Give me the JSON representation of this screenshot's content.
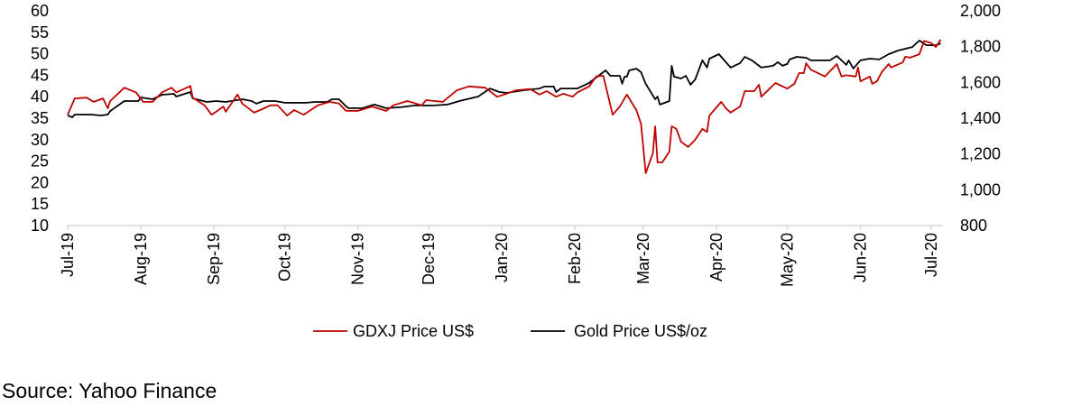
{
  "chart_data": {
    "type": "line",
    "title": "",
    "xlabel": "",
    "ylabel": "",
    "y_left": {
      "range": [
        10,
        60
      ],
      "ticks": [
        10,
        15,
        20,
        25,
        30,
        35,
        40,
        45,
        50,
        55,
        60
      ]
    },
    "y_right": {
      "range": [
        800,
        2000
      ],
      "ticks": [
        "800",
        "1,000",
        "1,200",
        "1,400",
        "1,600",
        "1,800",
        "2,000"
      ]
    },
    "x_ticks": [
      {
        "date": "2019-07-01",
        "label": "Jul-19"
      },
      {
        "date": "2019-08-01",
        "label": "Aug-19"
      },
      {
        "date": "2019-09-01",
        "label": "Sep-19"
      },
      {
        "date": "2019-10-01",
        "label": "Oct-19"
      },
      {
        "date": "2019-11-01",
        "label": "Nov-19"
      },
      {
        "date": "2019-12-01",
        "label": "Dec-19"
      },
      {
        "date": "2020-01-01",
        "label": "Jan-20"
      },
      {
        "date": "2020-02-01",
        "label": "Feb-20"
      },
      {
        "date": "2020-03-01",
        "label": "Mar-20"
      },
      {
        "date": "2020-04-01",
        "label": "Apr-20"
      },
      {
        "date": "2020-05-01",
        "label": "May-20"
      },
      {
        "date": "2020-06-01",
        "label": "Jun-20"
      },
      {
        "date": "2020-07-01",
        "label": "Jul-20"
      }
    ],
    "grid": false,
    "legend_placement": "bottom",
    "series": [
      {
        "name": "GDXJ Price US$",
        "axis": "left",
        "color": "#c00000",
        "points": [
          [
            "2019-07-01",
            35.8
          ],
          [
            "2019-07-04",
            39.6
          ],
          [
            "2019-07-09",
            39.8
          ],
          [
            "2019-07-12",
            38.8
          ],
          [
            "2019-07-16",
            39.6
          ],
          [
            "2019-07-18",
            37.3
          ],
          [
            "2019-07-19",
            39
          ],
          [
            "2019-07-25",
            42.1
          ],
          [
            "2019-07-30",
            41
          ],
          [
            "2019-08-02",
            38.8
          ],
          [
            "2019-08-06",
            38.8
          ],
          [
            "2019-08-10",
            41
          ],
          [
            "2019-08-14",
            42.1
          ],
          [
            "2019-08-16",
            41
          ],
          [
            "2019-08-22",
            42.5
          ],
          [
            "2019-08-23",
            39.8
          ],
          [
            "2019-08-28",
            38
          ],
          [
            "2019-08-31",
            35.8
          ],
          [
            "2019-09-05",
            37.7
          ],
          [
            "2019-09-06",
            36.5
          ],
          [
            "2019-09-11",
            40.5
          ],
          [
            "2019-09-13",
            38.4
          ],
          [
            "2019-09-18",
            36.3
          ],
          [
            "2019-09-21",
            37
          ],
          [
            "2019-09-25",
            38
          ],
          [
            "2019-09-28",
            38
          ],
          [
            "2019-10-02",
            35.6
          ],
          [
            "2019-10-05",
            36.9
          ],
          [
            "2019-10-09",
            35.8
          ],
          [
            "2019-10-15",
            38
          ],
          [
            "2019-10-20",
            38.8
          ],
          [
            "2019-10-24",
            38.4
          ],
          [
            "2019-10-27",
            36.7
          ],
          [
            "2019-11-01",
            36.7
          ],
          [
            "2019-11-07",
            37.7
          ],
          [
            "2019-11-13",
            36.7
          ],
          [
            "2019-11-16",
            38
          ],
          [
            "2019-11-22",
            39
          ],
          [
            "2019-11-28",
            38
          ],
          [
            "2019-11-30",
            39.2
          ],
          [
            "2019-12-07",
            38.8
          ],
          [
            "2019-12-13",
            41.5
          ],
          [
            "2019-12-18",
            42.4
          ],
          [
            "2019-12-25",
            42.1
          ],
          [
            "2019-12-30",
            40
          ],
          [
            "2020-01-02",
            40.5
          ],
          [
            "2020-01-07",
            41.5
          ],
          [
            "2020-01-13",
            41.8
          ],
          [
            "2020-01-17",
            40.5
          ],
          [
            "2020-01-20",
            41.3
          ],
          [
            "2020-01-24",
            40
          ],
          [
            "2020-01-27",
            40.7
          ],
          [
            "2020-01-31",
            40
          ],
          [
            "2020-02-02",
            41
          ],
          [
            "2020-02-07",
            42.4
          ],
          [
            "2020-02-10",
            44.7
          ],
          [
            "2020-02-13",
            44.9
          ],
          [
            "2020-02-14",
            42.6
          ],
          [
            "2020-02-17",
            35.8
          ],
          [
            "2020-02-20",
            37.7
          ],
          [
            "2020-02-23",
            40.5
          ],
          [
            "2020-02-27",
            36.9
          ],
          [
            "2020-02-29",
            33.7
          ],
          [
            "2020-03-02",
            22.2
          ],
          [
            "2020-03-05",
            26.8
          ],
          [
            "2020-03-06",
            33.1
          ],
          [
            "2020-03-07",
            24.7
          ],
          [
            "2020-03-09",
            24.7
          ],
          [
            "2020-03-12",
            27.2
          ],
          [
            "2020-03-13",
            33.1
          ],
          [
            "2020-03-15",
            32.5
          ],
          [
            "2020-03-17",
            29.5
          ],
          [
            "2020-03-20",
            28.3
          ],
          [
            "2020-03-23",
            30
          ],
          [
            "2020-03-26",
            32.5
          ],
          [
            "2020-03-28",
            31.8
          ],
          [
            "2020-03-29",
            35.6
          ],
          [
            "2020-04-03",
            38.8
          ],
          [
            "2020-04-05",
            37.3
          ],
          [
            "2020-04-07",
            36.3
          ],
          [
            "2020-04-11",
            37.7
          ],
          [
            "2020-04-13",
            41.3
          ],
          [
            "2020-04-17",
            41.3
          ],
          [
            "2020-04-19",
            42.8
          ],
          [
            "2020-04-20",
            40
          ],
          [
            "2020-04-26",
            43.2
          ],
          [
            "2020-05-01",
            41.9
          ],
          [
            "2020-05-04",
            43
          ],
          [
            "2020-05-06",
            45.5
          ],
          [
            "2020-05-08",
            45.5
          ],
          [
            "2020-05-09",
            47.8
          ],
          [
            "2020-05-11",
            46.3
          ],
          [
            "2020-05-17",
            44.7
          ],
          [
            "2020-05-22",
            47.6
          ],
          [
            "2020-05-24",
            44.7
          ],
          [
            "2020-05-26",
            45
          ],
          [
            "2020-05-30",
            44.7
          ],
          [
            "2020-05-31",
            46.8
          ],
          [
            "2020-06-01",
            43.6
          ],
          [
            "2020-06-05",
            44.7
          ],
          [
            "2020-06-06",
            43
          ],
          [
            "2020-06-08",
            43.6
          ],
          [
            "2020-06-10",
            45.7
          ],
          [
            "2020-06-13",
            47.6
          ],
          [
            "2020-06-14",
            46.8
          ],
          [
            "2020-06-19",
            48
          ],
          [
            "2020-06-20",
            49.3
          ],
          [
            "2020-06-22",
            49.1
          ],
          [
            "2020-06-26",
            49.9
          ],
          [
            "2020-06-28",
            53
          ],
          [
            "2020-07-01",
            52.5
          ],
          [
            "2020-07-03",
            51.6
          ],
          [
            "2020-07-05",
            53.3
          ]
        ]
      },
      {
        "name": "Gold Price US$/oz",
        "axis": "right",
        "color": "#000000",
        "points": [
          [
            "2019-07-01",
            1415
          ],
          [
            "2019-07-03",
            1405
          ],
          [
            "2019-07-04",
            1420
          ],
          [
            "2019-07-11",
            1420
          ],
          [
            "2019-07-15",
            1415
          ],
          [
            "2019-07-18",
            1420
          ],
          [
            "2019-07-19",
            1440
          ],
          [
            "2019-07-25",
            1496
          ],
          [
            "2019-07-31",
            1496
          ],
          [
            "2019-08-01",
            1516
          ],
          [
            "2019-08-06",
            1506
          ],
          [
            "2019-08-10",
            1531
          ],
          [
            "2019-08-15",
            1536
          ],
          [
            "2019-08-16",
            1521
          ],
          [
            "2019-08-22",
            1546
          ],
          [
            "2019-08-23",
            1511
          ],
          [
            "2019-08-29",
            1491
          ],
          [
            "2019-09-02",
            1496
          ],
          [
            "2019-09-06",
            1491
          ],
          [
            "2019-09-13",
            1506
          ],
          [
            "2019-09-17",
            1496
          ],
          [
            "2019-09-19",
            1481
          ],
          [
            "2019-09-22",
            1496
          ],
          [
            "2019-09-27",
            1496
          ],
          [
            "2019-10-01",
            1486
          ],
          [
            "2019-10-10",
            1486
          ],
          [
            "2019-10-14",
            1491
          ],
          [
            "2019-10-19",
            1491
          ],
          [
            "2019-10-21",
            1506
          ],
          [
            "2019-10-24",
            1506
          ],
          [
            "2019-10-27",
            1466
          ],
          [
            "2019-10-28",
            1456
          ],
          [
            "2019-11-03",
            1456
          ],
          [
            "2019-11-08",
            1476
          ],
          [
            "2019-11-13",
            1456
          ],
          [
            "2019-11-19",
            1461
          ],
          [
            "2019-11-25",
            1471
          ],
          [
            "2019-12-03",
            1471
          ],
          [
            "2019-12-09",
            1476
          ],
          [
            "2019-12-14",
            1496
          ],
          [
            "2019-12-22",
            1521
          ],
          [
            "2019-12-27",
            1566
          ],
          [
            "2019-12-31",
            1546
          ],
          [
            "2020-01-03",
            1541
          ],
          [
            "2020-01-10",
            1556
          ],
          [
            "2020-01-17",
            1566
          ],
          [
            "2020-01-19",
            1577
          ],
          [
            "2020-01-23",
            1577
          ],
          [
            "2020-01-24",
            1546
          ],
          [
            "2020-01-26",
            1566
          ],
          [
            "2020-02-02",
            1566
          ],
          [
            "2020-02-07",
            1597
          ],
          [
            "2020-02-12",
            1647
          ],
          [
            "2020-02-14",
            1667
          ],
          [
            "2020-02-16",
            1637
          ],
          [
            "2020-02-20",
            1637
          ],
          [
            "2020-02-21",
            1592
          ],
          [
            "2020-02-22",
            1632
          ],
          [
            "2020-02-23",
            1632
          ],
          [
            "2020-02-24",
            1667
          ],
          [
            "2020-02-27",
            1677
          ],
          [
            "2020-02-29",
            1657
          ],
          [
            "2020-03-02",
            1592
          ],
          [
            "2020-03-06",
            1506
          ],
          [
            "2020-03-07",
            1521
          ],
          [
            "2020-03-08",
            1476
          ],
          [
            "2020-03-12",
            1496
          ],
          [
            "2020-03-13",
            1693
          ],
          [
            "2020-03-14",
            1632
          ],
          [
            "2020-03-17",
            1622
          ],
          [
            "2020-03-19",
            1637
          ],
          [
            "2020-03-21",
            1587
          ],
          [
            "2020-03-23",
            1617
          ],
          [
            "2020-03-26",
            1723
          ],
          [
            "2020-03-28",
            1683
          ],
          [
            "2020-03-29",
            1733
          ],
          [
            "2020-04-02",
            1758
          ],
          [
            "2020-04-03",
            1743
          ],
          [
            "2020-04-07",
            1683
          ],
          [
            "2020-04-11",
            1708
          ],
          [
            "2020-04-13",
            1743
          ],
          [
            "2020-04-16",
            1723
          ],
          [
            "2020-04-20",
            1683
          ],
          [
            "2020-04-25",
            1693
          ],
          [
            "2020-04-27",
            1713
          ],
          [
            "2020-04-29",
            1693
          ],
          [
            "2020-05-01",
            1703
          ],
          [
            "2020-05-02",
            1728
          ],
          [
            "2020-05-05",
            1743
          ],
          [
            "2020-05-09",
            1738
          ],
          [
            "2020-05-11",
            1723
          ],
          [
            "2020-05-19",
            1723
          ],
          [
            "2020-05-22",
            1748
          ],
          [
            "2020-05-26",
            1698
          ],
          [
            "2020-05-27",
            1723
          ],
          [
            "2020-05-29",
            1678
          ],
          [
            "2020-06-01",
            1723
          ],
          [
            "2020-06-05",
            1733
          ],
          [
            "2020-06-09",
            1728
          ],
          [
            "2020-06-13",
            1758
          ],
          [
            "2020-06-17",
            1778
          ],
          [
            "2020-06-23",
            1798
          ],
          [
            "2020-06-26",
            1834
          ],
          [
            "2020-06-29",
            1808
          ],
          [
            "2020-07-03",
            1808
          ],
          [
            "2020-07-05",
            1818
          ]
        ]
      }
    ]
  },
  "source": "Source: Yahoo Finance"
}
